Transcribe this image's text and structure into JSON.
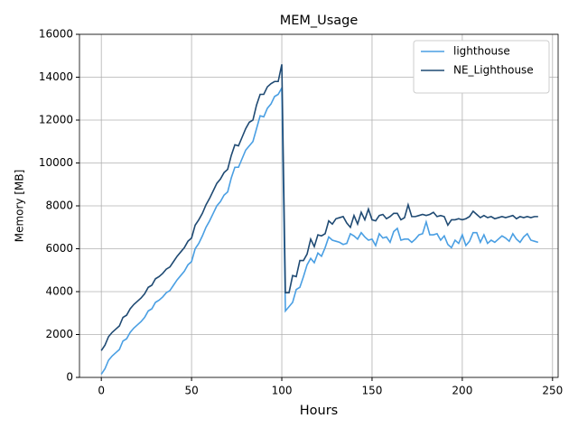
{
  "chart_data": {
    "type": "line",
    "title": "MEM_Usage",
    "x_label": "Hours",
    "y_label": "Memory [MB]",
    "x": [
      0,
      2,
      4,
      6,
      8,
      10,
      12,
      14,
      16,
      18,
      20,
      22,
      24,
      26,
      28,
      30,
      32,
      34,
      36,
      38,
      40,
      42,
      44,
      46,
      48,
      50,
      52,
      54,
      56,
      58,
      60,
      62,
      64,
      66,
      68,
      70,
      72,
      74,
      76,
      78,
      80,
      82,
      84,
      86,
      88,
      90,
      92,
      94,
      96,
      98,
      100,
      102,
      104,
      106,
      108,
      110,
      112,
      114,
      116,
      118,
      120,
      122,
      124,
      126,
      128,
      130,
      132,
      134,
      136,
      138,
      140,
      142,
      144,
      146,
      148,
      150,
      152,
      154,
      156,
      158,
      160,
      162,
      164,
      166,
      168,
      170,
      172,
      174,
      176,
      178,
      180,
      182,
      184,
      186,
      188,
      190,
      192,
      194,
      196,
      198,
      200,
      202,
      204,
      206,
      208,
      210,
      212,
      214,
      216,
      218,
      220,
      222,
      224,
      226,
      228,
      230,
      232,
      234,
      236,
      238,
      240,
      242
    ],
    "series": [
      {
        "name": "lighthouse",
        "color": "#4a9fe3",
        "values": [
          150,
          400,
          800,
          1000,
          1150,
          1300,
          1700,
          1800,
          2100,
          2300,
          2450,
          2600,
          2800,
          3100,
          3200,
          3500,
          3600,
          3750,
          3950,
          4050,
          4300,
          4550,
          4750,
          4950,
          5250,
          5400,
          6000,
          6250,
          6600,
          7000,
          7300,
          7650,
          8000,
          8200,
          8500,
          8650,
          9300,
          9800,
          9800,
          10200,
          10600,
          10800,
          11000,
          11600,
          12200,
          12150,
          12550,
          12750,
          13100,
          13200,
          13500,
          3100,
          3300,
          3500,
          4100,
          4200,
          4700,
          5250,
          5550,
          5350,
          5800,
          5650,
          6050,
          6550,
          6400,
          6350,
          6300,
          6200,
          6250,
          6700,
          6600,
          6450,
          6750,
          6550,
          6400,
          6450,
          6150,
          6700,
          6500,
          6550,
          6300,
          6800,
          6950,
          6400,
          6450,
          6450,
          6300,
          6450,
          6650,
          6700,
          7250,
          6650,
          6650,
          6700,
          6400,
          6600,
          6200,
          6050,
          6400,
          6250,
          6650,
          6150,
          6350,
          6750,
          6750,
          6300,
          6650,
          6250,
          6400,
          6300,
          6450,
          6600,
          6500,
          6350,
          6700,
          6450,
          6300,
          6550,
          6700,
          6400,
          6350,
          6300
        ]
      },
      {
        "name": "NE_Lighthouse",
        "color": "#1f4a73",
        "values": [
          1250,
          1500,
          1900,
          2100,
          2250,
          2400,
          2800,
          2900,
          3200,
          3400,
          3550,
          3700,
          3900,
          4200,
          4300,
          4600,
          4700,
          4850,
          5050,
          5150,
          5400,
          5650,
          5850,
          6050,
          6350,
          6500,
          7100,
          7350,
          7650,
          8050,
          8350,
          8700,
          9050,
          9250,
          9550,
          9700,
          10350,
          10850,
          10800,
          11200,
          11600,
          11900,
          12000,
          12700,
          13200,
          13200,
          13550,
          13700,
          13800,
          13800,
          14600,
          3950,
          3950,
          4750,
          4700,
          5450,
          5450,
          5750,
          6450,
          6100,
          6650,
          6600,
          6700,
          7300,
          7150,
          7400,
          7450,
          7500,
          7200,
          7000,
          7550,
          7150,
          7700,
          7350,
          7850,
          7350,
          7300,
          7550,
          7600,
          7400,
          7500,
          7650,
          7650,
          7350,
          7450,
          8050,
          7500,
          7500,
          7550,
          7600,
          7550,
          7600,
          7700,
          7500,
          7550,
          7500,
          7100,
          7350,
          7350,
          7400,
          7350,
          7400,
          7500,
          7750,
          7600,
          7450,
          7550,
          7450,
          7500,
          7400,
          7450,
          7500,
          7450,
          7500,
          7550,
          7400,
          7500,
          7450,
          7500,
          7450,
          7500,
          7500
        ]
      }
    ],
    "xlim": [
      -12.1,
      253.1
    ],
    "ylim": [
      0,
      16000
    ],
    "xticks": [
      0,
      50,
      100,
      150,
      200,
      250
    ],
    "yticks": [
      0,
      2000,
      4000,
      6000,
      8000,
      10000,
      12000,
      14000,
      16000
    ],
    "grid": true,
    "legend": "upper right"
  }
}
